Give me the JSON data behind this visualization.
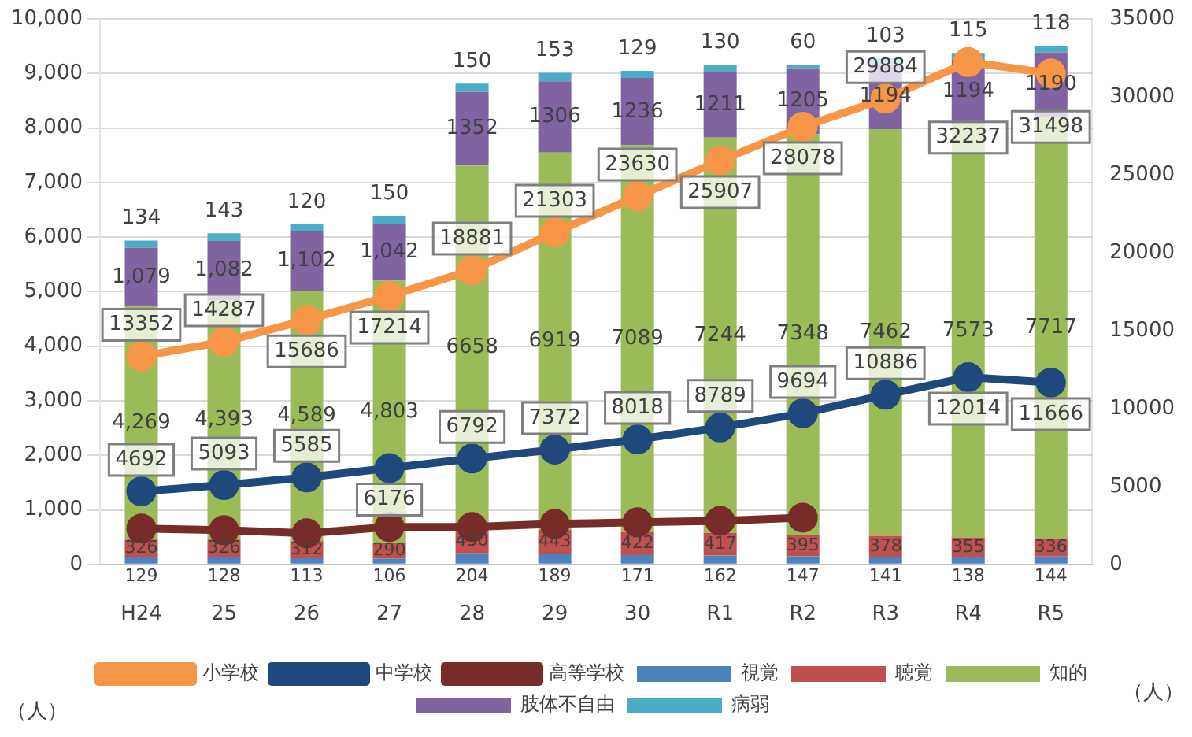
{
  "chart_data": {
    "type": "bar",
    "stacked": true,
    "categories": [
      "H24",
      "25",
      "26",
      "27",
      "28",
      "29",
      "30",
      "R1",
      "R2",
      "R3",
      "R4",
      "R5"
    ],
    "ylabel": "（人）",
    "y2label": "（人）",
    "ylim": [
      0,
      10000
    ],
    "yticks": [
      0,
      {
        "value": 1000,
        "label": "1,000"
      },
      {
        "value": 2000,
        "label": "2,000"
      },
      {
        "value": 3000,
        "label": "3,000"
      },
      {
        "value": 4000,
        "label": "4,000"
      },
      {
        "value": 5000,
        "label": "5,000"
      },
      {
        "value": 6000,
        "label": "6,000"
      },
      {
        "value": 7000,
        "label": "7,000"
      },
      {
        "value": 8000,
        "label": "8,000"
      },
      {
        "value": 9000,
        "label": "9,000"
      },
      {
        "value": 10000,
        "label": "10,000"
      }
    ],
    "y2lim": [
      0,
      35000
    ],
    "y2ticks": [
      0,
      5000,
      10000,
      15000,
      20000,
      25000,
      30000,
      35000
    ],
    "grid": "y",
    "legend": "bottom",
    "series": [
      {
        "name": "視覚",
        "color": "#4f81bd",
        "values": [
          129,
          128,
          113,
          106,
          204,
          189,
          171,
          162,
          147,
          141,
          138,
          144
        ],
        "value_labels": [
          "129",
          "128",
          "113",
          "106",
          "204",
          "189",
          "171",
          "162",
          "147",
          "141",
          "138",
          "144"
        ]
      },
      {
        "name": "聴覚",
        "color": "#c0504d",
        "values": [
          326,
          326,
          312,
          290,
          450,
          443,
          422,
          417,
          395,
          378,
          355,
          336
        ],
        "value_labels": [
          "326",
          "326",
          "312",
          "290",
          "450",
          "443",
          "422",
          "417",
          "395",
          "378",
          "355",
          "336"
        ]
      },
      {
        "name": "知的",
        "color": "#9bbb59",
        "values": [
          4269,
          4393,
          4589,
          4803,
          6658,
          6919,
          7089,
          7244,
          7348,
          7462,
          7573,
          7717
        ],
        "value_labels": [
          "4,269",
          "4,393",
          "4,589",
          "4,803",
          "6658",
          "6919",
          "7089",
          "7244",
          "7348",
          "7462",
          "7573",
          "7717"
        ]
      },
      {
        "name": "肢体不自由",
        "color": "#8064a2",
        "values": [
          1079,
          1082,
          1102,
          1042,
          1352,
          1306,
          1236,
          1211,
          1205,
          1194,
          1194,
          1190
        ],
        "value_labels": [
          "1,079",
          "1,082",
          "1,102",
          "1,042",
          "1352",
          "1306",
          "1236",
          "1211",
          "1205",
          "1194",
          "1194",
          "1190"
        ]
      },
      {
        "name": "病弱",
        "color": "#4bacc6",
        "values": [
          134,
          143,
          120,
          150,
          150,
          153,
          129,
          130,
          60,
          103,
          115,
          118
        ],
        "value_labels": [
          "134",
          "143",
          "120",
          "150",
          "150",
          "153",
          "129",
          "130",
          "60",
          "103",
          "115",
          "118"
        ]
      },
      {
        "name": "小学校",
        "type": "line",
        "axis": "y2",
        "color": "#f79646",
        "marker": "circle",
        "values": [
          13352,
          14287,
          15686,
          17214,
          18881,
          21303,
          23630,
          25907,
          28078,
          29884,
          32237,
          31498
        ],
        "value_labels": [
          "13352",
          "14287",
          "15686",
          "17214",
          "18881",
          "21303",
          "23630",
          "25907",
          "28078",
          "29884",
          "32237",
          "31498"
        ]
      },
      {
        "name": "中学校",
        "type": "line",
        "axis": "y2",
        "color": "#1f497d",
        "marker": "circle",
        "values": [
          4692,
          5093,
          5585,
          6176,
          6792,
          7372,
          8018,
          8789,
          9694,
          10886,
          12014,
          11666
        ],
        "value_labels": [
          "4692",
          "5093",
          "5585",
          "6176",
          "6792",
          "7372",
          "8018",
          "8789",
          "9694",
          "10886",
          "12014",
          "11666"
        ]
      },
      {
        "name": "高等学校",
        "type": "line",
        "axis": "y2",
        "color": "#772c2a",
        "marker": "circle",
        "values": [
          2300,
          2200,
          2000,
          2400,
          2400,
          2600,
          2700,
          2800,
          3000,
          null,
          null,
          null
        ]
      }
    ]
  }
}
